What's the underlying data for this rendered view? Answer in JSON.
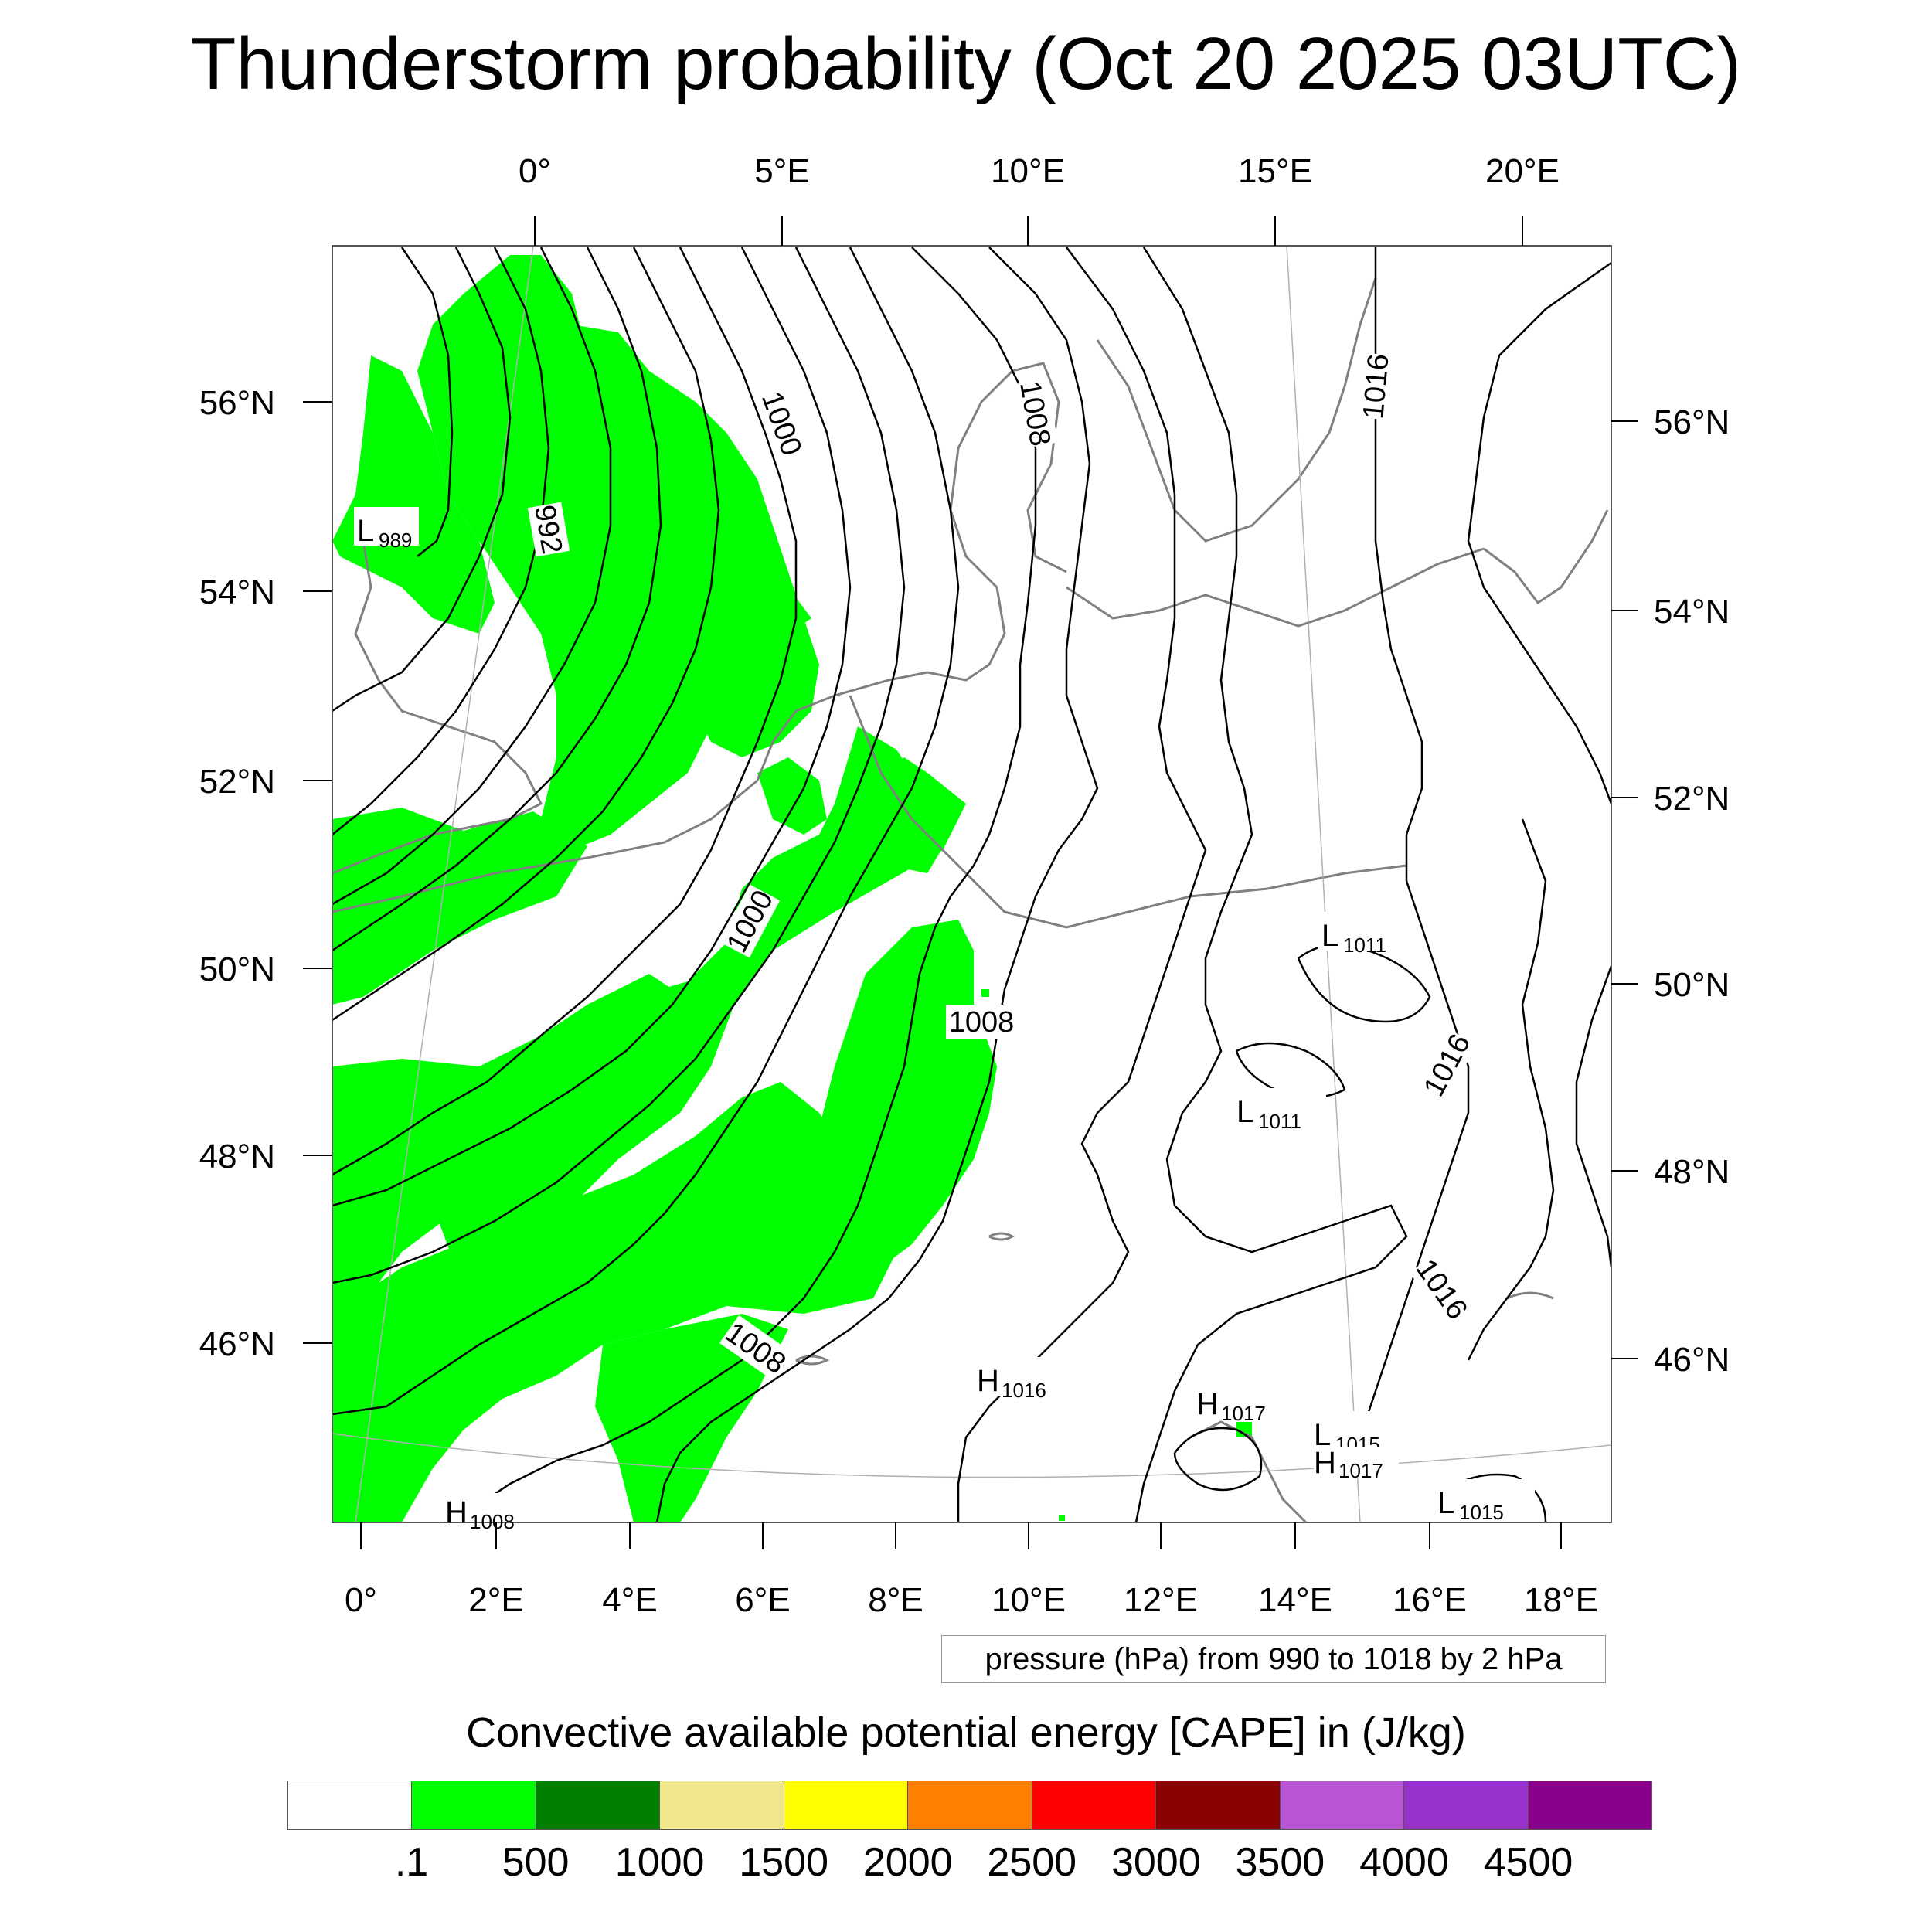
{
  "title": "Thunderstorm probability (Oct 20 2025 03UTC)",
  "colors": {
    "cape_fill": "#00ff00",
    "contour": "#000000",
    "coastline": "#808080",
    "grid": "#b0b0b0",
    "frame": "#555555"
  },
  "axes": {
    "top_lon": [
      "0°",
      "5°E",
      "10°E",
      "15°E",
      "20°E"
    ],
    "bottom_lon": [
      "0°",
      "2°E",
      "4°E",
      "6°E",
      "8°E",
      "10°E",
      "12°E",
      "14°E",
      "16°E",
      "18°E"
    ],
    "left_lat": [
      "56°N",
      "54°N",
      "52°N",
      "50°N",
      "48°N",
      "46°N"
    ],
    "right_lat": [
      "56°N",
      "54°N",
      "52°N",
      "50°N",
      "48°N",
      "46°N"
    ]
  },
  "contour_labels": [
    "992",
    "1000",
    "1008",
    "1016",
    "1000",
    "1008",
    "1016",
    "1008",
    "1016"
  ],
  "pressure_centers": [
    {
      "type": "L",
      "value": "989"
    },
    {
      "type": "L",
      "value": "1011"
    },
    {
      "type": "L",
      "value": "1011"
    },
    {
      "type": "H",
      "value": "1016"
    },
    {
      "type": "H",
      "value": "1017"
    },
    {
      "type": "L",
      "value": "1015"
    },
    {
      "type": "H",
      "value": "1017"
    },
    {
      "type": "L",
      "value": "1015"
    },
    {
      "type": "H",
      "value": "1008"
    }
  ],
  "contour_info": "pressure (hPa) from 990 to 1018 by 2 hPa",
  "colorbar": {
    "title": "Convective available potential energy [CAPE] in (J/kg)",
    "colors": [
      "#ffffff",
      "#00ff00",
      "#008000",
      "#f0e68c",
      "#ffff00",
      "#ff8000",
      "#ff0000",
      "#8b0000",
      "#ba55d3",
      "#9932cc",
      "#8b008b"
    ],
    "labels": [
      ".1",
      "500",
      "1000",
      "1500",
      "2000",
      "2500",
      "3000",
      "3500",
      "4000",
      "4500"
    ]
  }
}
